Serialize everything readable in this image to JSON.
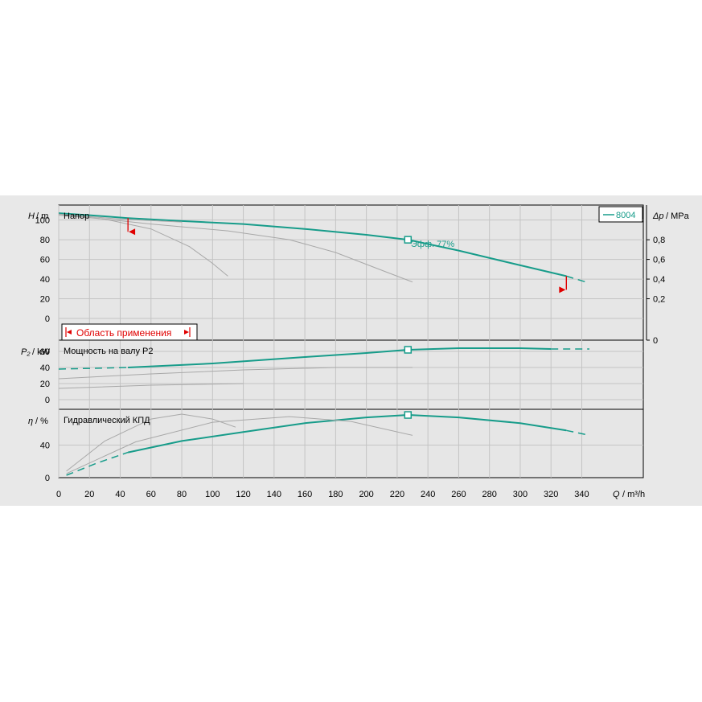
{
  "colors": {
    "panel_bg": "#e8e8e8",
    "plot_bg": "#e6e6e6",
    "grid": "#c4c4c4",
    "axis": "#000000",
    "curve": "#179c8a",
    "ghost": "#a8a8a8",
    "marker": "#e00000"
  },
  "header": {
    "series_label": "8004"
  },
  "chart_data": [
    {
      "type": "line",
      "panel": "head",
      "title": "Напор",
      "ylabel_symbol": "H",
      "ylabel_unit": "/ m",
      "xlim": [
        0,
        380
      ],
      "ylim": [
        0,
        112
      ],
      "yticks": [
        20,
        40,
        60,
        80,
        100
      ],
      "right_axis": {
        "label_symbol": "Δp",
        "label_unit": "/ MPa",
        "ticks": [
          {
            "label": "0,8",
            "value": 80
          },
          {
            "label": "0,6",
            "value": 60
          },
          {
            "label": "0,4",
            "value": 40
          },
          {
            "label": "0,2",
            "value": 20
          },
          {
            "label": "0",
            "value": 0
          }
        ]
      },
      "range_label": "Область применения",
      "efficiency_label": "Эфф.  77%",
      "duty_point": {
        "x": 227,
        "y": 80
      },
      "range_markers": [
        {
          "x": 45,
          "y": 90
        },
        {
          "x": 330,
          "y": 30
        }
      ],
      "series": [
        {
          "name": "8004",
          "style": "main",
          "x": [
            0,
            20,
            45,
            80,
            120,
            160,
            200,
            227,
            260,
            300,
            330
          ],
          "y": [
            107,
            105,
            102,
            99,
            96,
            91,
            85,
            80,
            69,
            54,
            43
          ]
        },
        {
          "name": "",
          "style": "dash",
          "x": [
            330,
            345
          ],
          "y": [
            43,
            36
          ]
        },
        {
          "name": "",
          "style": "ghost",
          "x": [
            0,
            30,
            60,
            85,
            100,
            110
          ],
          "y": [
            105,
            101,
            91,
            73,
            56,
            43
          ]
        },
        {
          "name": "",
          "style": "ghost",
          "x": [
            0,
            60,
            110,
            150,
            180,
            210,
            230
          ],
          "y": [
            106,
            96,
            89,
            80,
            67,
            49,
            37
          ]
        },
        {
          "name": "",
          "style": "ghost",
          "x": [
            0,
            40,
            80
          ],
          "y": [
            106,
            101,
            98
          ]
        }
      ]
    },
    {
      "type": "line",
      "panel": "power",
      "title": "Мощность на валу P2",
      "ylabel_symbol": "P₂",
      "ylabel_unit": "/ kW",
      "xlim": [
        0,
        380
      ],
      "ylim": [
        0,
        70
      ],
      "yticks": [
        20,
        40,
        60
      ],
      "duty_point": {
        "x": 227,
        "y": 62
      },
      "series": [
        {
          "name": "8004",
          "style": "main",
          "x": [
            45,
            100,
            160,
            200,
            227,
            260,
            300,
            320
          ],
          "y": [
            40,
            45,
            53,
            58,
            62,
            64,
            64,
            63
          ]
        },
        {
          "name": "",
          "style": "dash",
          "x": [
            0,
            45
          ],
          "y": [
            38,
            40
          ]
        },
        {
          "name": "",
          "style": "dash",
          "x": [
            320,
            345
          ],
          "y": [
            63,
            63
          ]
        },
        {
          "name": "",
          "style": "ghost",
          "x": [
            0,
            60,
            120,
            180,
            230
          ],
          "y": [
            26,
            32,
            37,
            40,
            40
          ]
        },
        {
          "name": "",
          "style": "ghost",
          "x": [
            0,
            60,
            120
          ],
          "y": [
            14,
            18,
            20
          ]
        }
      ]
    },
    {
      "type": "line",
      "panel": "efficiency",
      "title": "Гидравлический КПД",
      "ylabel_symbol": "η",
      "ylabel_unit": "/ %",
      "xlim": [
        0,
        380
      ],
      "ylim": [
        0,
        80
      ],
      "yticks": [
        40
      ],
      "duty_point": {
        "x": 227,
        "y": 77
      },
      "series": [
        {
          "name": "8004",
          "style": "main",
          "x": [
            45,
            80,
            120,
            160,
            200,
            227,
            260,
            300,
            330
          ],
          "y": [
            31,
            45,
            56,
            67,
            74,
            77,
            74,
            67,
            58
          ]
        },
        {
          "name": "",
          "style": "dash",
          "x": [
            5,
            25,
            45
          ],
          "y": [
            3,
            18,
            31
          ]
        },
        {
          "name": "",
          "style": "dash",
          "x": [
            330,
            345
          ],
          "y": [
            58,
            52
          ]
        },
        {
          "name": "",
          "style": "ghost",
          "x": [
            5,
            30,
            60,
            80,
            100,
            115
          ],
          "y": [
            8,
            45,
            72,
            78,
            72,
            62
          ]
        },
        {
          "name": "",
          "style": "ghost",
          "x": [
            5,
            50,
            100,
            150,
            190,
            230
          ],
          "y": [
            5,
            44,
            68,
            75,
            69,
            52
          ]
        }
      ]
    }
  ],
  "x_axis": {
    "label_symbol": "Q",
    "label_unit": "/ m³/h",
    "ticks": [
      "0",
      "20",
      "40",
      "60",
      "80",
      "100",
      "120",
      "140",
      "160",
      "180",
      "200",
      "220",
      "240",
      "260",
      "280",
      "300",
      "320",
      "340"
    ]
  }
}
